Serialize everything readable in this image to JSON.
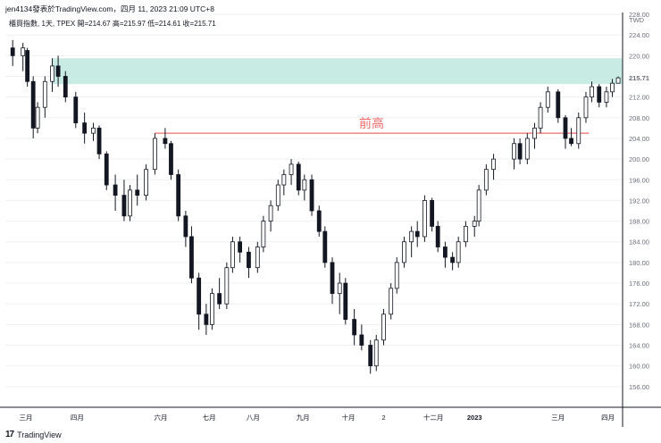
{
  "header": {
    "publish_text": "jen4134發表於TradingView.com，四月 11, 2023 21:09 UTC+8"
  },
  "legend": {
    "text": "櫃買指數, 1天, TPEX  開=214.67  高=215.97  低=214.61  收=215.71"
  },
  "footer": {
    "brand": "TradingView",
    "logo": "17"
  },
  "chart_data": {
    "type": "candlestick",
    "currency": "TWD",
    "ylim": [
      152,
      228
    ],
    "y_ticks": [
      156,
      160,
      164,
      168,
      172,
      176,
      180,
      184,
      188,
      192,
      196,
      200,
      204,
      208,
      212,
      216,
      220,
      224,
      228
    ],
    "last_price_label": "215.71",
    "x_ticks": [
      "三月",
      "四月",
      "六月",
      "七月",
      "八月",
      "九月",
      "十月",
      "2",
      "十二月",
      "2023",
      "三月",
      "四月"
    ],
    "annotation": {
      "text": "前高",
      "price": 205.0
    },
    "resistance_zone": {
      "low": 214.5,
      "high": 219.5
    },
    "series": [
      {
        "date": "2022-02-22",
        "open": 221.5,
        "high": 223.0,
        "low": 218.0,
        "close": 220.0
      },
      {
        "date": "2022-03-01",
        "open": 220.0,
        "high": 222.5,
        "low": 217.0,
        "close": 221.5
      },
      {
        "date": "2022-03-04",
        "open": 221.0,
        "high": 221.5,
        "low": 214.0,
        "close": 215.0
      },
      {
        "date": "2022-03-08",
        "open": 215.0,
        "high": 216.0,
        "low": 204.0,
        "close": 206.0
      },
      {
        "date": "2022-03-11",
        "open": 206.0,
        "high": 211.0,
        "low": 205.0,
        "close": 210.0
      },
      {
        "date": "2022-03-16",
        "open": 210.0,
        "high": 216.0,
        "low": 208.0,
        "close": 215.0
      },
      {
        "date": "2022-03-21",
        "open": 215.0,
        "high": 219.5,
        "low": 213.0,
        "close": 218.0
      },
      {
        "date": "2022-03-25",
        "open": 218.0,
        "high": 220.0,
        "low": 214.0,
        "close": 216.0
      },
      {
        "date": "2022-03-30",
        "open": 216.0,
        "high": 217.0,
        "low": 211.0,
        "close": 212.0
      },
      {
        "date": "2022-04-06",
        "open": 212.0,
        "high": 213.0,
        "low": 206.0,
        "close": 207.0
      },
      {
        "date": "2022-04-12",
        "open": 207.0,
        "high": 209.0,
        "low": 203.0,
        "close": 205.0
      },
      {
        "date": "2022-04-18",
        "open": 205.0,
        "high": 207.0,
        "low": 203.5,
        "close": 206.0
      },
      {
        "date": "2022-04-22",
        "open": 206.0,
        "high": 206.5,
        "low": 200.0,
        "close": 201.0
      },
      {
        "date": "2022-04-27",
        "open": 201.0,
        "high": 201.5,
        "low": 194.0,
        "close": 195.0
      },
      {
        "date": "2022-05-03",
        "open": 195.0,
        "high": 197.0,
        "low": 190.0,
        "close": 193.0
      },
      {
        "date": "2022-05-09",
        "open": 193.0,
        "high": 196.0,
        "low": 188.0,
        "close": 189.0
      },
      {
        "date": "2022-05-13",
        "open": 189.0,
        "high": 195.0,
        "low": 188.0,
        "close": 194.0
      },
      {
        "date": "2022-05-18",
        "open": 194.0,
        "high": 197.0,
        "low": 191.0,
        "close": 193.0
      },
      {
        "date": "2022-05-24",
        "open": 193.0,
        "high": 199.0,
        "low": 192.0,
        "close": 198.0
      },
      {
        "date": "2022-05-30",
        "open": 198.0,
        "high": 205.0,
        "low": 197.0,
        "close": 204.0
      },
      {
        "date": "2022-06-06",
        "open": 204.0,
        "high": 206.0,
        "low": 202.0,
        "close": 203.0
      },
      {
        "date": "2022-06-10",
        "open": 203.0,
        "high": 203.5,
        "low": 196.0,
        "close": 197.0
      },
      {
        "date": "2022-06-15",
        "open": 197.0,
        "high": 198.0,
        "low": 188.0,
        "close": 189.0
      },
      {
        "date": "2022-06-20",
        "open": 189.0,
        "high": 190.0,
        "low": 183.0,
        "close": 185.0
      },
      {
        "date": "2022-06-24",
        "open": 185.0,
        "high": 187.0,
        "low": 176.0,
        "close": 177.0
      },
      {
        "date": "2022-06-29",
        "open": 177.0,
        "high": 178.0,
        "low": 167.0,
        "close": 170.0
      },
      {
        "date": "2022-07-04",
        "open": 170.0,
        "high": 172.0,
        "low": 166.0,
        "close": 168.0
      },
      {
        "date": "2022-07-08",
        "open": 168.0,
        "high": 175.0,
        "low": 167.0,
        "close": 174.0
      },
      {
        "date": "2022-07-13",
        "open": 174.0,
        "high": 177.0,
        "low": 171.0,
        "close": 172.0
      },
      {
        "date": "2022-07-18",
        "open": 172.0,
        "high": 180.0,
        "low": 171.0,
        "close": 179.0
      },
      {
        "date": "2022-07-22",
        "open": 179.0,
        "high": 185.0,
        "low": 178.0,
        "close": 184.0
      },
      {
        "date": "2022-07-27",
        "open": 184.0,
        "high": 185.0,
        "low": 180.0,
        "close": 182.0
      },
      {
        "date": "2022-08-02",
        "open": 182.0,
        "high": 183.0,
        "low": 177.0,
        "close": 179.0
      },
      {
        "date": "2022-08-08",
        "open": 179.0,
        "high": 184.0,
        "low": 178.0,
        "close": 183.0
      },
      {
        "date": "2022-08-12",
        "open": 183.0,
        "high": 189.0,
        "low": 182.0,
        "close": 188.0
      },
      {
        "date": "2022-08-17",
        "open": 188.0,
        "high": 192.0,
        "low": 186.0,
        "close": 191.0
      },
      {
        "date": "2022-08-22",
        "open": 191.0,
        "high": 196.0,
        "low": 190.0,
        "close": 195.0
      },
      {
        "date": "2022-08-26",
        "open": 195.0,
        "high": 198.0,
        "low": 193.0,
        "close": 197.0
      },
      {
        "date": "2022-08-31",
        "open": 197.0,
        "high": 200.0,
        "low": 195.0,
        "close": 199.0
      },
      {
        "date": "2022-09-05",
        "open": 199.0,
        "high": 199.5,
        "low": 193.0,
        "close": 194.0
      },
      {
        "date": "2022-09-09",
        "open": 194.0,
        "high": 197.0,
        "low": 192.0,
        "close": 196.0
      },
      {
        "date": "2022-09-14",
        "open": 196.0,
        "high": 197.0,
        "low": 189.0,
        "close": 190.0
      },
      {
        "date": "2022-09-19",
        "open": 190.0,
        "high": 191.0,
        "low": 185.0,
        "close": 186.0
      },
      {
        "date": "2022-09-23",
        "open": 186.0,
        "high": 187.0,
        "low": 179.0,
        "close": 180.0
      },
      {
        "date": "2022-09-28",
        "open": 180.0,
        "high": 181.0,
        "low": 172.0,
        "close": 174.0
      },
      {
        "date": "2022-10-03",
        "open": 174.0,
        "high": 178.0,
        "low": 170.0,
        "close": 176.0
      },
      {
        "date": "2022-10-07",
        "open": 176.0,
        "high": 177.0,
        "low": 168.0,
        "close": 169.0
      },
      {
        "date": "2022-10-13",
        "open": 169.0,
        "high": 171.0,
        "low": 164.0,
        "close": 166.0
      },
      {
        "date": "2022-10-18",
        "open": 166.0,
        "high": 168.0,
        "low": 163.0,
        "close": 164.0
      },
      {
        "date": "2022-10-24",
        "open": 164.0,
        "high": 165.0,
        "low": 158.5,
        "close": 160.0
      },
      {
        "date": "2022-10-28",
        "open": 160.0,
        "high": 166.0,
        "low": 159.0,
        "close": 165.0
      },
      {
        "date": "2022-11-02",
        "open": 165.0,
        "high": 171.0,
        "low": 164.0,
        "close": 170.0
      },
      {
        "date": "2022-11-07",
        "open": 170.0,
        "high": 176.0,
        "low": 169.0,
        "close": 175.0
      },
      {
        "date": "2022-11-11",
        "open": 175.0,
        "high": 181.0,
        "low": 174.0,
        "close": 180.0
      },
      {
        "date": "2022-11-16",
        "open": 180.0,
        "high": 185.0,
        "low": 179.0,
        "close": 184.0
      },
      {
        "date": "2022-11-21",
        "open": 184.0,
        "high": 187.0,
        "low": 181.0,
        "close": 186.0
      },
      {
        "date": "2022-11-25",
        "open": 186.0,
        "high": 188.0,
        "low": 183.0,
        "close": 185.0
      },
      {
        "date": "2022-11-30",
        "open": 185.0,
        "high": 193.0,
        "low": 184.0,
        "close": 192.0
      },
      {
        "date": "2022-12-05",
        "open": 192.0,
        "high": 192.5,
        "low": 186.0,
        "close": 187.0
      },
      {
        "date": "2022-12-09",
        "open": 187.0,
        "high": 188.0,
        "low": 182.0,
        "close": 183.0
      },
      {
        "date": "2022-12-14",
        "open": 183.0,
        "high": 184.0,
        "low": 179.0,
        "close": 181.0
      },
      {
        "date": "2022-12-19",
        "open": 181.0,
        "high": 182.0,
        "low": 178.5,
        "close": 180.0
      },
      {
        "date": "2022-12-23",
        "open": 180.0,
        "high": 185.0,
        "low": 179.0,
        "close": 184.0
      },
      {
        "date": "2022-12-28",
        "open": 184.0,
        "high": 188.0,
        "low": 183.0,
        "close": 187.0
      },
      {
        "date": "2023-01-03",
        "open": 187.0,
        "high": 189.0,
        "low": 185.0,
        "close": 188.0
      },
      {
        "date": "2023-01-06",
        "open": 188.0,
        "high": 195.0,
        "low": 187.0,
        "close": 194.0
      },
      {
        "date": "2023-01-11",
        "open": 194.0,
        "high": 199.0,
        "low": 193.0,
        "close": 198.0
      },
      {
        "date": "2023-01-16",
        "open": 198.0,
        "high": 201.0,
        "low": 196.0,
        "close": 200.0
      },
      {
        "date": "2023-01-30",
        "open": 200.0,
        "high": 204.0,
        "low": 198.0,
        "close": 203.0
      },
      {
        "date": "2023-02-03",
        "open": 203.0,
        "high": 204.0,
        "low": 199.0,
        "close": 200.0
      },
      {
        "date": "2023-02-08",
        "open": 200.0,
        "high": 205.0,
        "low": 199.0,
        "close": 204.0
      },
      {
        "date": "2023-02-13",
        "open": 204.0,
        "high": 207.0,
        "low": 202.0,
        "close": 206.0
      },
      {
        "date": "2023-02-17",
        "open": 206.0,
        "high": 211.0,
        "low": 205.0,
        "close": 210.0
      },
      {
        "date": "2023-02-22",
        "open": 210.0,
        "high": 214.0,
        "low": 209.0,
        "close": 213.0
      },
      {
        "date": "2023-03-01",
        "open": 213.0,
        "high": 213.5,
        "low": 207.0,
        "close": 208.0
      },
      {
        "date": "2023-03-06",
        "open": 208.0,
        "high": 208.5,
        "low": 202.0,
        "close": 204.0
      },
      {
        "date": "2023-03-10",
        "open": 204.0,
        "high": 206.0,
        "low": 202.5,
        "close": 203.0
      },
      {
        "date": "2023-03-15",
        "open": 203.0,
        "high": 209.0,
        "low": 202.0,
        "close": 208.0
      },
      {
        "date": "2023-03-20",
        "open": 208.0,
        "high": 213.0,
        "low": 207.0,
        "close": 212.0
      },
      {
        "date": "2023-03-24",
        "open": 212.0,
        "high": 215.0,
        "low": 211.0,
        "close": 214.0
      },
      {
        "date": "2023-03-29",
        "open": 214.0,
        "high": 214.5,
        "low": 210.0,
        "close": 211.0
      },
      {
        "date": "2023-04-03",
        "open": 211.0,
        "high": 214.0,
        "low": 210.0,
        "close": 213.0
      },
      {
        "date": "2023-04-07",
        "open": 213.0,
        "high": 215.5,
        "low": 212.0,
        "close": 214.67
      },
      {
        "date": "2023-04-11",
        "open": 214.67,
        "high": 215.97,
        "low": 214.61,
        "close": 215.71
      }
    ],
    "colors": {
      "candle": "#131722",
      "zone": "#c8ebe4",
      "annotation": "#f06a6a",
      "grid": "#eef0f3",
      "price_label_bg": "#ffffff"
    }
  }
}
